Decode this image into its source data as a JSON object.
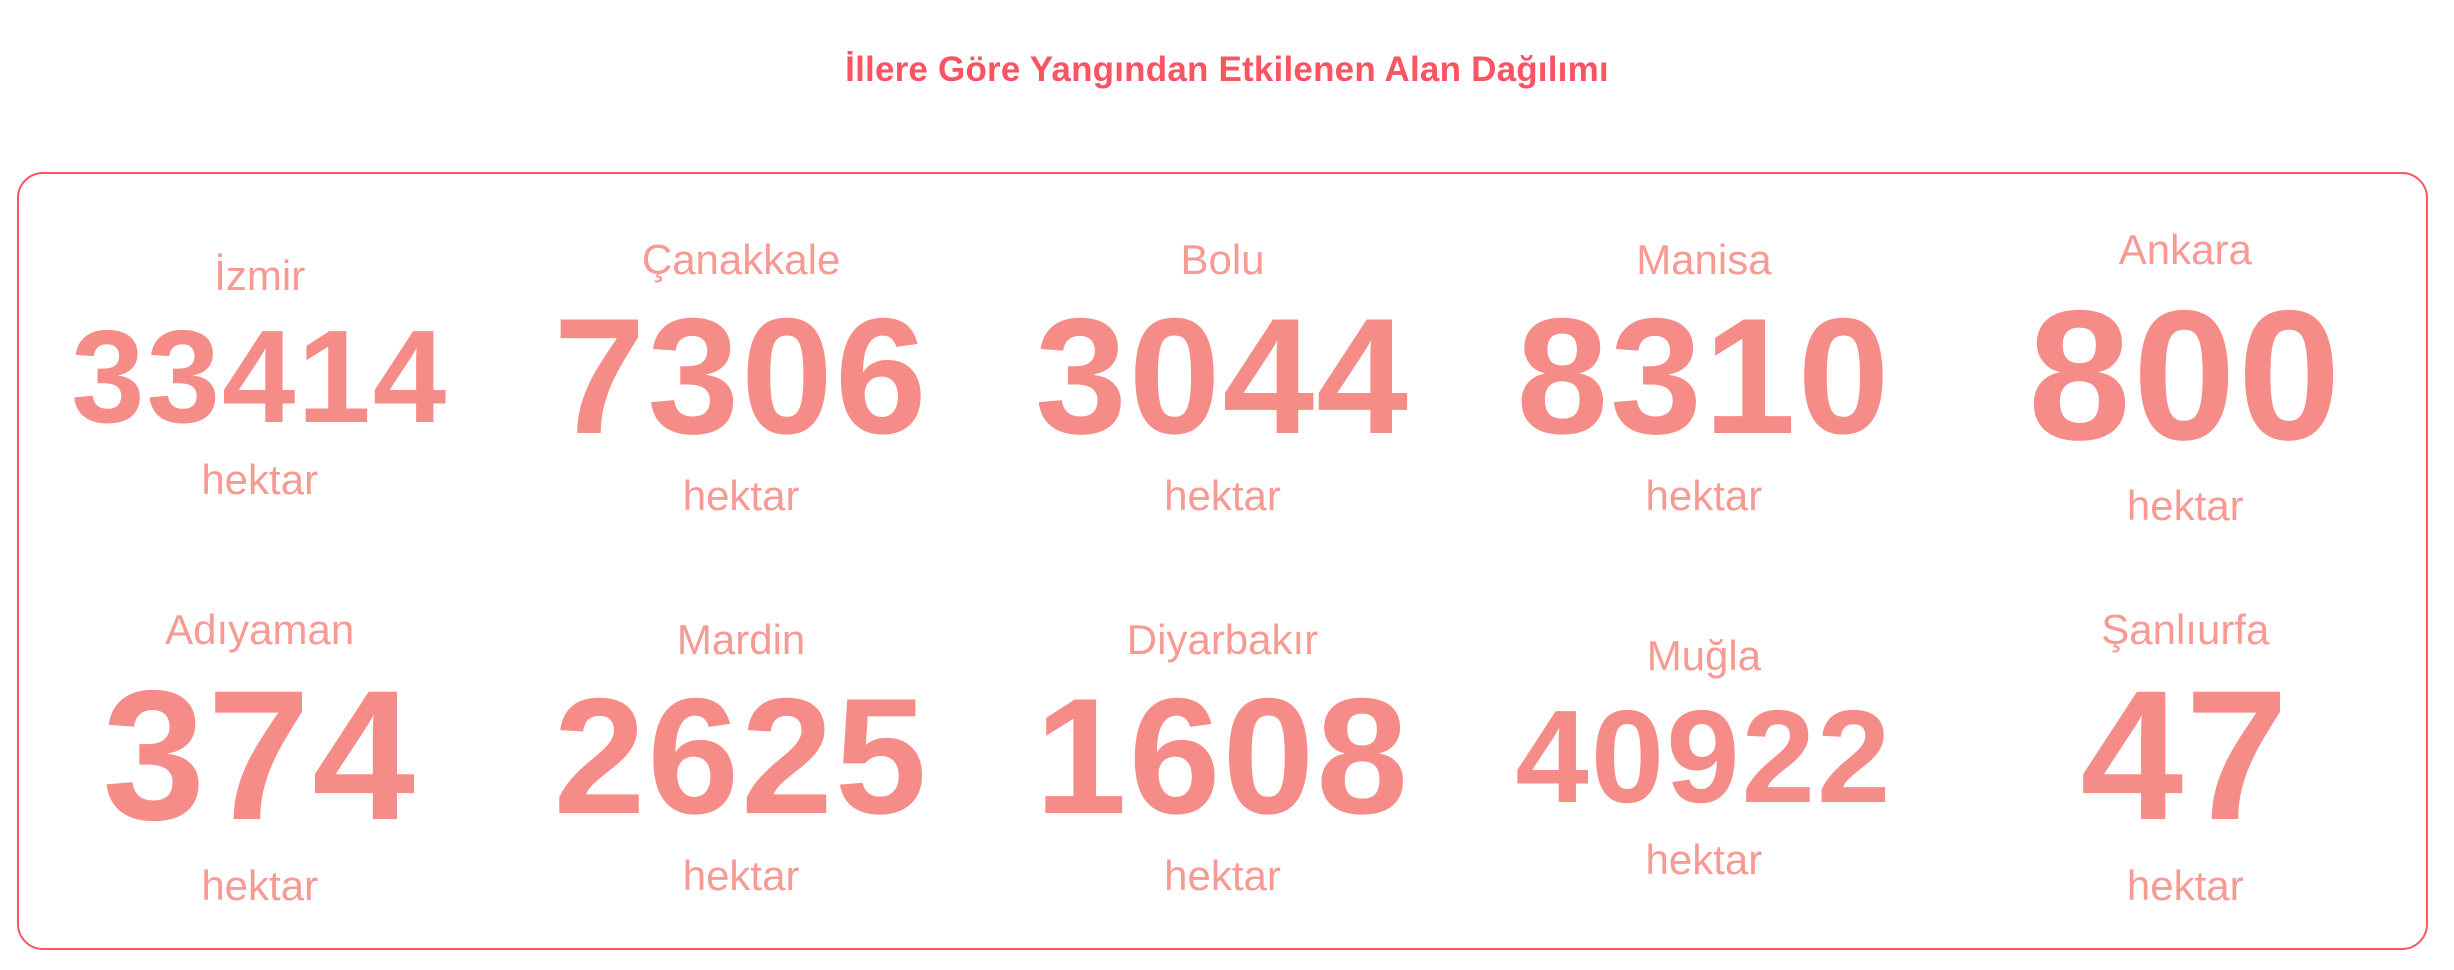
{
  "title": "İllere Göre Yangından Etkilenen Alan Dağılımı",
  "colors": {
    "title": "#fa5463",
    "panel_border": "#f8575e",
    "value_text": "#f68c87",
    "label_text": "#f79a94",
    "background": "#ffffff"
  },
  "chart_data": {
    "type": "table",
    "title": "İllere Göre Yangından Etkilenen Alan Dağılımı",
    "unit": "hektar",
    "layout": "2 rows x 5 columns of big-number stat cards",
    "categories": [
      "İzmir",
      "Çanakkale",
      "Bolu",
      "Manisa",
      "Ankara",
      "Adıyaman",
      "Mardin",
      "Diyarbakır",
      "Muğla",
      "Şanlıurfa"
    ],
    "values": [
      33414,
      7306,
      3044,
      8310,
      800,
      374,
      2625,
      1608,
      40922,
      47
    ]
  },
  "cards": [
    {
      "province": "İzmir",
      "value": "33414",
      "unit": "hektar"
    },
    {
      "province": "Çanakkale",
      "value": "7306",
      "unit": "hektar"
    },
    {
      "province": "Bolu",
      "value": "3044",
      "unit": "hektar"
    },
    {
      "province": "Manisa",
      "value": "8310",
      "unit": "hektar"
    },
    {
      "province": "Ankara",
      "value": "800",
      "unit": "hektar"
    },
    {
      "province": "Adıyaman",
      "value": "374",
      "unit": "hektar"
    },
    {
      "province": "Mardin",
      "value": "2625",
      "unit": "hektar"
    },
    {
      "province": "Diyarbakır",
      "value": "1608",
      "unit": "hektar"
    },
    {
      "province": "Muğla",
      "value": "40922",
      "unit": "hektar"
    },
    {
      "province": "Şanlıurfa",
      "value": "47",
      "unit": "hektar"
    }
  ]
}
